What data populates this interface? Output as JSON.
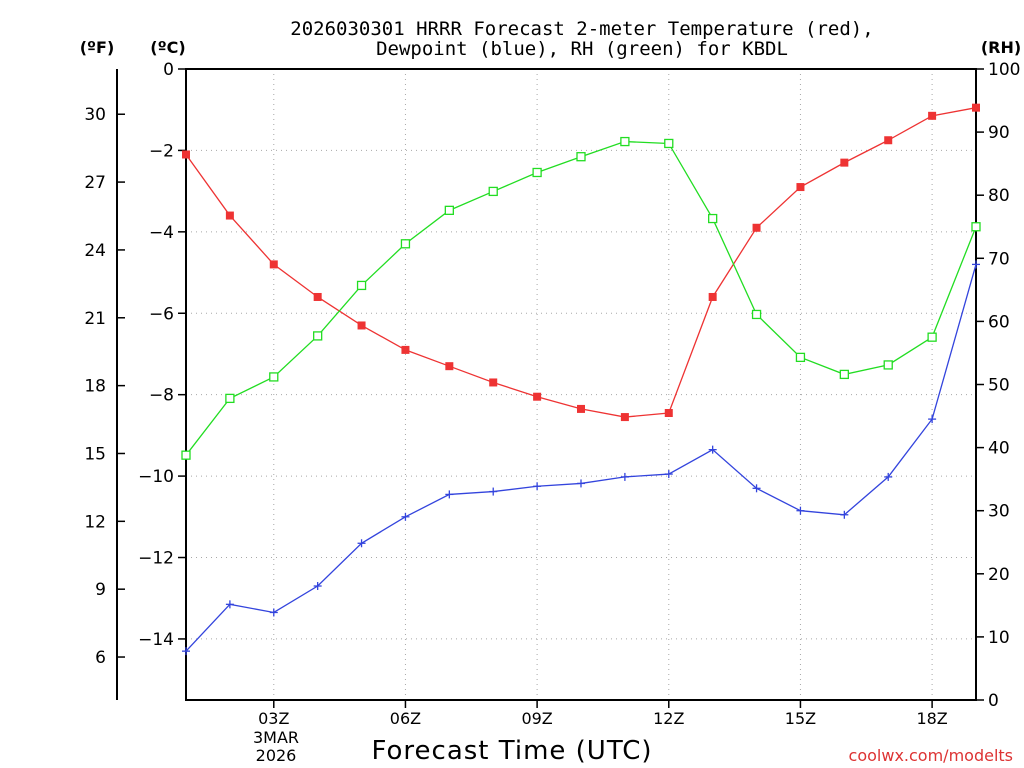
{
  "chart_data": {
    "type": "line",
    "title_line1": "2026030301 HRRR Forecast 2-meter Temperature (red),",
    "title_line2": "Dewpoint (blue), RH (green) for KBDL",
    "xlabel": "Forecast Time (UTC)",
    "unit_f": "(ºF)",
    "unit_c": "(ºC)",
    "unit_rh": "(RH)",
    "date_label_line1": "3MAR",
    "date_label_line2": "2026",
    "credit": "coolwx.com/modelts",
    "x_hours": [
      1,
      2,
      3,
      4,
      5,
      6,
      7,
      8,
      9,
      10,
      11,
      12,
      13,
      14,
      15,
      16,
      17,
      18,
      19
    ],
    "x_range": [
      1,
      19
    ],
    "x_ticks": [
      {
        "hour": 3,
        "label": "03Z"
      },
      {
        "hour": 6,
        "label": "06Z"
      },
      {
        "hour": 9,
        "label": "09Z"
      },
      {
        "hour": 12,
        "label": "12Z"
      },
      {
        "hour": 15,
        "label": "15Z"
      },
      {
        "hour": 18,
        "label": "18Z"
      }
    ],
    "ylim_c": [
      -15.5,
      0
    ],
    "yticks_c": [
      0,
      -2,
      -4,
      -6,
      -8,
      -10,
      -12,
      -14
    ],
    "yticks_f": [
      30,
      27,
      24,
      21,
      18,
      15,
      12,
      9,
      6
    ],
    "ylim_rh": [
      0,
      100
    ],
    "yticks_rh": [
      0,
      10,
      20,
      30,
      40,
      50,
      60,
      70,
      80,
      90,
      100
    ],
    "grid": true,
    "series": [
      {
        "name": "Temperature",
        "axis": "c",
        "color": "#ee3333",
        "marker": "filled-square",
        "values": [
          -2.1,
          -3.6,
          -4.8,
          -5.6,
          -6.3,
          -6.9,
          -7.3,
          -7.7,
          -8.05,
          -8.35,
          -8.55,
          -8.45,
          -5.6,
          -3.9,
          -2.9,
          -2.3,
          -1.75,
          -1.15,
          -0.95
        ]
      },
      {
        "name": "Dewpoint",
        "axis": "c",
        "color": "#3344dd",
        "marker": "plus",
        "values": [
          -14.3,
          -13.15,
          -13.35,
          -12.7,
          -11.65,
          -11.0,
          -10.45,
          -10.38,
          -10.25,
          -10.18,
          -10.02,
          -9.95,
          -9.35,
          -10.3,
          -10.85,
          -10.95,
          -10.02,
          -8.6,
          -4.8
        ]
      },
      {
        "name": "RH",
        "axis": "rh",
        "color": "#22dd22",
        "marker": "open-square",
        "values": [
          38.8,
          47.8,
          51.2,
          57.7,
          65.7,
          72.3,
          77.6,
          80.6,
          83.6,
          86.1,
          88.5,
          88.2,
          76.3,
          61.1,
          54.3,
          51.6,
          53.1,
          57.5,
          75.0
        ]
      }
    ]
  }
}
